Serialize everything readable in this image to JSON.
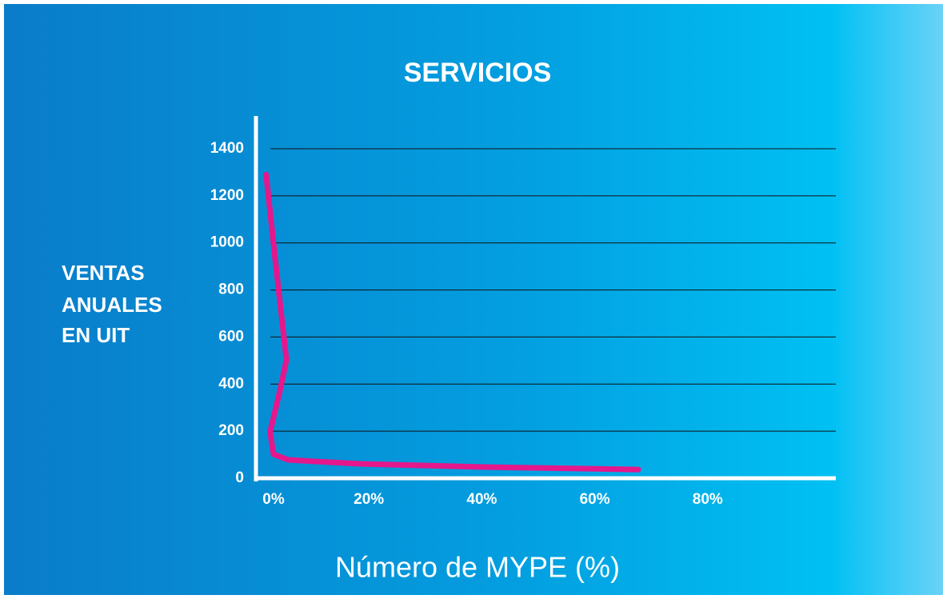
{
  "chart_data": {
    "type": "line",
    "title": "SERVICIOS",
    "y_label": [
      "VENTAS",
      "ANUALES",
      "EN UIT"
    ],
    "x_label": "Número de MYPE (%)",
    "series": [
      {
        "color": "#e5178c",
        "x": [
          1.8,
          3.5,
          5.4,
          4.2,
          2.5,
          3.1,
          5.7,
          18.4,
          39.7,
          67.7
        ],
        "values": [
          1290,
          910,
          503,
          367,
          197,
          102,
          78,
          61,
          48,
          37
        ]
      }
    ],
    "xlim": [
      0,
      100
    ],
    "xticks": [
      {
        "value": 0,
        "label": "0%"
      },
      {
        "value": 20,
        "label": "20%"
      },
      {
        "value": 40,
        "label": "40%"
      },
      {
        "value": 60,
        "label": "60%"
      },
      {
        "value": 80,
        "label": "80%"
      }
    ],
    "ylim": [
      0,
      1400
    ],
    "yticks": [
      0,
      200,
      400,
      600,
      800,
      1000,
      1200,
      1400
    ],
    "grid": true
  }
}
